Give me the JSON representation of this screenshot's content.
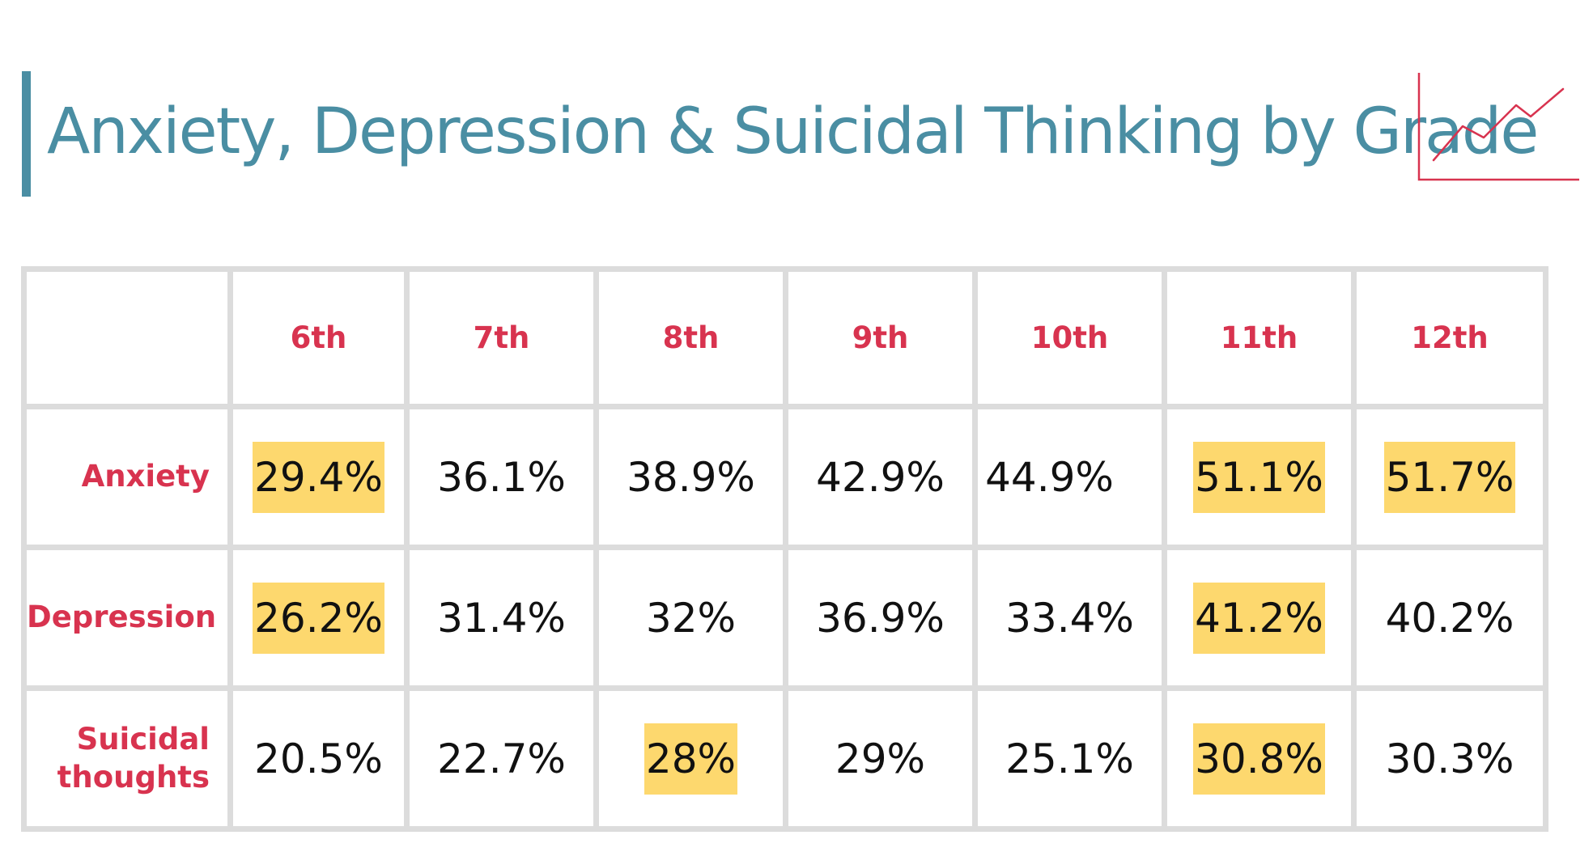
{
  "header": {
    "title": "Anxiety, Depression & Suicidal Thinking by Grade",
    "trend_icon": "line-chart-trend-icon"
  },
  "colors": {
    "title": "#4a8ea3",
    "label_red": "#d8334f",
    "highlight": "#fdd86e",
    "grid": "#dcdcdc",
    "icon_red": "#d8334f"
  },
  "chart_data": {
    "type": "table",
    "title": "Anxiety, Depression & Suicidal Thinking by Grade",
    "columns": [
      "6th",
      "7th",
      "8th",
      "9th",
      "10th",
      "11th",
      "12th"
    ],
    "rows": [
      {
        "label": "Anxiety",
        "cells": [
          {
            "text": "29.4%",
            "value": 29.4,
            "highlight": true
          },
          {
            "text": "36.1%",
            "value": 36.1,
            "highlight": false
          },
          {
            "text": "38.9%",
            "value": 38.9,
            "highlight": false
          },
          {
            "text": "42.9%",
            "value": 42.9,
            "highlight": false
          },
          {
            "text": "44.9%",
            "value": 44.9,
            "highlight": false
          },
          {
            "text": "51.1%",
            "value": 51.1,
            "highlight": true
          },
          {
            "text": "51.7%",
            "value": 51.7,
            "highlight": true
          }
        ]
      },
      {
        "label": "Depression",
        "cells": [
          {
            "text": "26.2%",
            "value": 26.2,
            "highlight": true
          },
          {
            "text": "31.4%",
            "value": 31.4,
            "highlight": false
          },
          {
            "text": "32%",
            "value": 32,
            "highlight": false
          },
          {
            "text": "36.9%",
            "value": 36.9,
            "highlight": false
          },
          {
            "text": "33.4%",
            "value": 33.4,
            "highlight": false
          },
          {
            "text": "41.2%",
            "value": 41.2,
            "highlight": true
          },
          {
            "text": "40.2%",
            "value": 40.2,
            "highlight": false
          }
        ]
      },
      {
        "label": "Suicidal thoughts",
        "label_lines": [
          "Suicidal",
          "thoughts"
        ],
        "cells": [
          {
            "text": "20.5%",
            "value": 20.5,
            "highlight": false
          },
          {
            "text": "22.7%",
            "value": 22.7,
            "highlight": false
          },
          {
            "text": "28%",
            "value": 28,
            "highlight": true
          },
          {
            "text": "29%",
            "value": 29,
            "highlight": false
          },
          {
            "text": "25.1%",
            "value": 25.1,
            "highlight": false
          },
          {
            "text": "30.8%",
            "value": 30.8,
            "highlight": true
          },
          {
            "text": "30.3%",
            "value": 30.3,
            "highlight": false
          }
        ]
      }
    ]
  }
}
